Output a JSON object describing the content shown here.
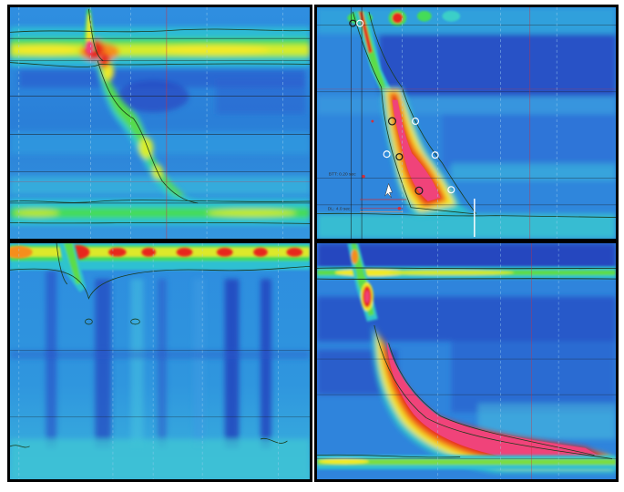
{
  "figure": {
    "panels": [
      {
        "id": "top-left",
        "annotations": []
      },
      {
        "id": "top-right",
        "annotations": [
          "BTT: 0.20 sec",
          "DL: 4.0 sec"
        ]
      },
      {
        "id": "bottom-left",
        "annotations": []
      },
      {
        "id": "bottom-right",
        "annotations": []
      }
    ]
  },
  "colors": {
    "low": "#2a4fc8",
    "base": "#2f8fe0",
    "mid": "#22c3d6",
    "green": "#3fdc5a",
    "yellow": "#f3ef2a",
    "orange": "#f59a1e",
    "red": "#e8261c",
    "peak": "#f0437a",
    "contour": "#1a3a1a"
  }
}
